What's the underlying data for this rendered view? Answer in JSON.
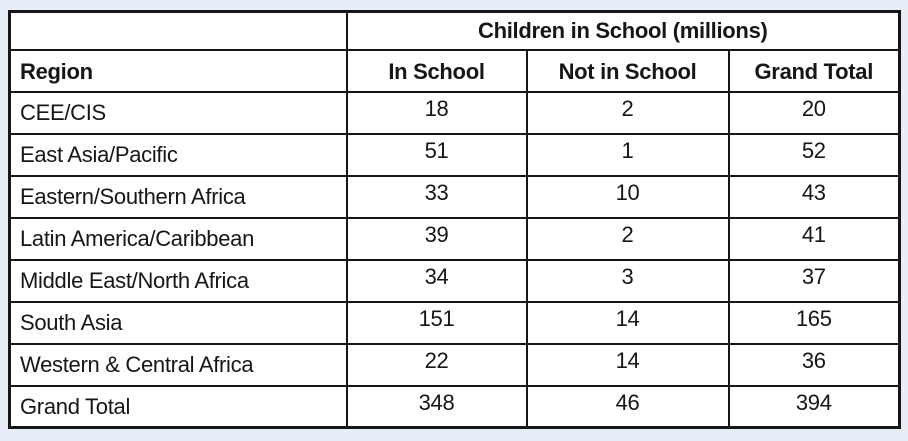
{
  "colors": {
    "page_background": "#e8eef7",
    "cell_background": "#ffffff",
    "border": "#161616",
    "text": "#161616"
  },
  "table": {
    "group_header": "Children in School (millions)",
    "columns": [
      "Region",
      "In School",
      "Not in School",
      "Grand Total"
    ],
    "rows": [
      {
        "region": "CEE/CIS",
        "in_school": "18",
        "not_in_school": "2",
        "grand_total": "20"
      },
      {
        "region": "East Asia/Pacific",
        "in_school": "51",
        "not_in_school": "1",
        "grand_total": "52"
      },
      {
        "region": "Eastern/Southern Africa",
        "in_school": "33",
        "not_in_school": "10",
        "grand_total": "43"
      },
      {
        "region": "Latin America/Caribbean",
        "in_school": "39",
        "not_in_school": "2",
        "grand_total": "41"
      },
      {
        "region": "Middle East/North Africa",
        "in_school": "34",
        "not_in_school": "3",
        "grand_total": "37"
      },
      {
        "region": "South Asia",
        "in_school": "151",
        "not_in_school": "14",
        "grand_total": "165"
      },
      {
        "region": "Western & Central Africa",
        "in_school": "22",
        "not_in_school": "14",
        "grand_total": "36"
      },
      {
        "region": "Grand Total",
        "in_school": "348",
        "not_in_school": "46",
        "grand_total": "394"
      }
    ]
  },
  "chart_data": {
    "type": "table",
    "title": "Children in School (millions)",
    "columns": [
      "Region",
      "In School",
      "Not in School",
      "Grand Total"
    ],
    "rows": [
      [
        "CEE/CIS",
        18,
        2,
        20
      ],
      [
        "East Asia/Pacific",
        51,
        1,
        52
      ],
      [
        "Eastern/Southern Africa",
        33,
        10,
        43
      ],
      [
        "Latin America/Caribbean",
        39,
        2,
        41
      ],
      [
        "Middle East/North Africa",
        34,
        3,
        37
      ],
      [
        "South Asia",
        151,
        14,
        165
      ],
      [
        "Western & Central Africa",
        22,
        14,
        36
      ],
      [
        "Grand Total",
        348,
        46,
        394
      ]
    ]
  }
}
